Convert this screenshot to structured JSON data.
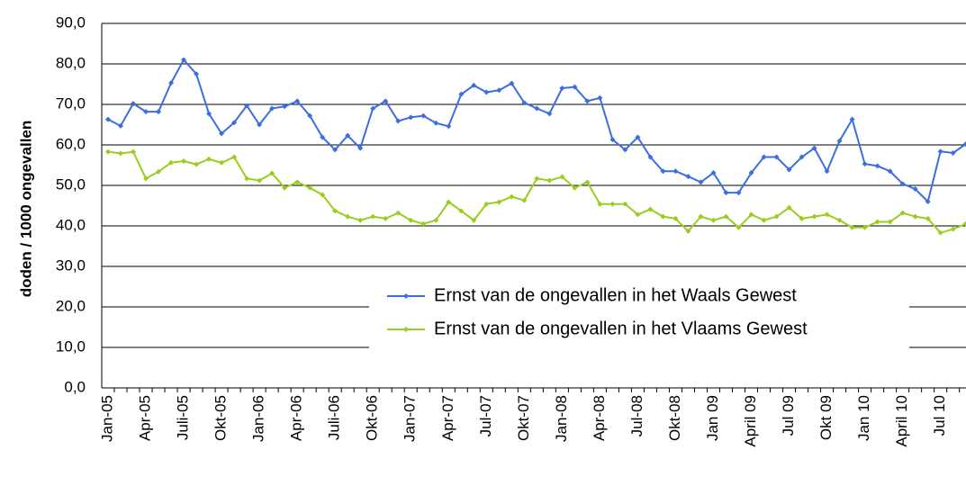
{
  "chart_data": {
    "type": "line",
    "ylabel": "doden / 1000 ongevallen",
    "categories": [
      "Jan-05",
      null,
      null,
      "Apr-05",
      null,
      null,
      "Juli-05",
      null,
      null,
      "Okt-05",
      null,
      null,
      "Jan-06",
      null,
      null,
      "Apr-06",
      null,
      null,
      "Juli-06",
      null,
      null,
      "Okt-06",
      null,
      null,
      "Jan-07",
      null,
      null,
      "Apr-07",
      null,
      null,
      "Jul-07",
      null,
      null,
      "Okt-07",
      null,
      null,
      "Jan-08",
      null,
      null,
      "Apr-08",
      null,
      null,
      "Jul-08",
      null,
      null,
      "Okt-08",
      null,
      null,
      "Jan 09",
      null,
      null,
      "April 09",
      null,
      null,
      "Jul 09",
      null,
      null,
      "Okt 09",
      null,
      null,
      "Jan 10",
      null,
      null,
      "April 10",
      null,
      null,
      "Jul 10",
      null,
      null
    ],
    "series": [
      {
        "name": "Ernst van de ongevallen in het Waals Gewest",
        "color": "#3c6ee0",
        "values": [
          66.3,
          64.7,
          70.2,
          68.2,
          68.2,
          75.3,
          81.0,
          77.5,
          67.7,
          62.8,
          65.5,
          69.7,
          65.0,
          69.0,
          69.5,
          70.8,
          67.2,
          61.9,
          58.8,
          62.3,
          59.2,
          69.0,
          70.8,
          65.9,
          66.8,
          67.2,
          65.4,
          64.6,
          72.5,
          74.7,
          73.0,
          73.5,
          75.2,
          70.4,
          69.0,
          67.7,
          74.0,
          74.3,
          70.8,
          71.6,
          61.3,
          58.8,
          61.9,
          57.0,
          53.5,
          53.5,
          52.2,
          50.8,
          53.1,
          48.2,
          48.2,
          53.1,
          57.0,
          57.0,
          53.9,
          57.0,
          59.2,
          53.5,
          61.0,
          66.3,
          55.3,
          54.8,
          53.5,
          50.4,
          49.1,
          46.0,
          58.4,
          58.0,
          60.2
        ]
      },
      {
        "name": "Ernst van de ongevallen in het Vlaams Gewest",
        "color": "#9acd1e",
        "values": [
          58.3,
          57.9,
          58.3,
          51.7,
          53.4,
          55.6,
          56.0,
          55.2,
          56.5,
          55.6,
          57.0,
          51.7,
          51.2,
          53.0,
          49.4,
          50.8,
          49.4,
          47.7,
          43.7,
          42.3,
          41.4,
          42.3,
          41.8,
          43.2,
          41.4,
          40.5,
          41.4,
          45.9,
          43.7,
          41.4,
          45.4,
          45.9,
          47.2,
          46.3,
          51.7,
          51.2,
          52.1,
          49.4,
          50.8,
          45.4,
          45.4,
          45.4,
          42.8,
          44.1,
          42.3,
          41.8,
          38.7,
          42.3,
          41.4,
          42.3,
          39.6,
          42.8,
          41.4,
          42.3,
          44.5,
          41.8,
          42.3,
          42.8,
          41.4,
          39.6,
          39.6,
          41.0,
          41.0,
          43.2,
          42.3,
          41.8,
          38.3,
          39.2,
          40.5
        ]
      }
    ],
    "ylim": [
      0,
      90
    ],
    "yticks": [
      {
        "value": 0,
        "label": "0,0"
      },
      {
        "value": 10,
        "label": "10,0"
      },
      {
        "value": 20,
        "label": "20,0"
      },
      {
        "value": 30,
        "label": "30,0"
      },
      {
        "value": 40,
        "label": "40,0"
      },
      {
        "value": 50,
        "label": "50,0"
      },
      {
        "value": 60,
        "label": "60,0"
      },
      {
        "value": 70,
        "label": "70,0"
      },
      {
        "value": 80,
        "label": "80,0"
      },
      {
        "value": 90,
        "label": "90,0"
      }
    ],
    "grid": true,
    "legend": "lower right"
  }
}
